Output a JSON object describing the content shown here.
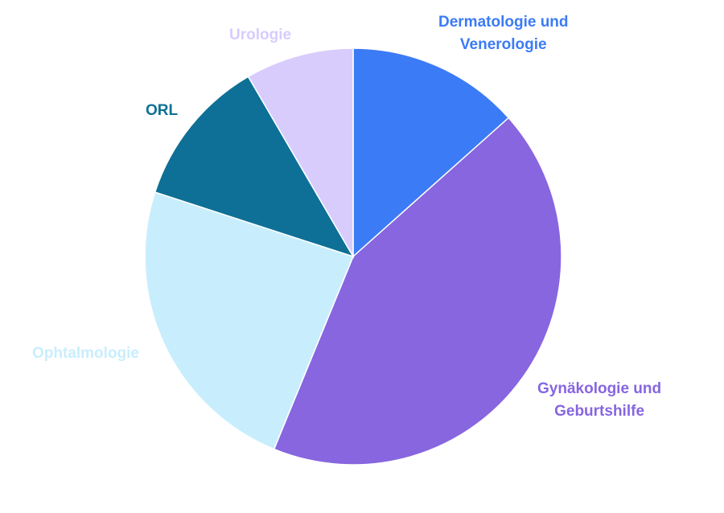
{
  "chart_data": {
    "type": "pie",
    "title": "",
    "start_angle": "top",
    "direction": "clockwise",
    "legend": "none (direct labels)",
    "slices": [
      {
        "label_lines": [
          "Dermatologie und",
          "Venerologie"
        ],
        "value": 13.4,
        "color": "#3B7BF5"
      },
      {
        "label_lines": [
          "Gynäkologie und",
          "Geburtshilfe"
        ],
        "value": 42.8,
        "color": "#8766E0"
      },
      {
        "label_lines": [
          "Ophtalmologie"
        ],
        "value": 23.8,
        "color": "#C8EEFD"
      },
      {
        "label_lines": [
          "ORL"
        ],
        "value": 11.6,
        "color": "#0E7096"
      },
      {
        "label_lines": [
          "Urologie"
        ],
        "value": 8.4,
        "color": "#D8CCFD"
      }
    ]
  }
}
